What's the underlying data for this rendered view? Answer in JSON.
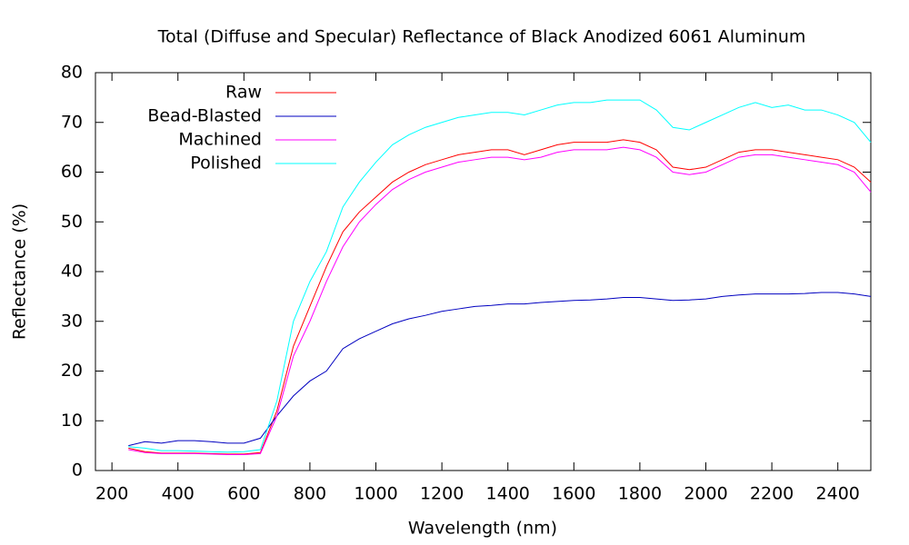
{
  "chart_data": {
    "type": "line",
    "title": "Total (Diffuse and Specular) Reflectance of Black Anodized 6061 Aluminum",
    "x_label": "Wavelength (nm)",
    "y_label": "Reflectance (%)",
    "x": [
      250,
      300,
      350,
      400,
      450,
      500,
      550,
      600,
      650,
      700,
      750,
      800,
      850,
      900,
      950,
      1000,
      1050,
      1100,
      1150,
      1200,
      1250,
      1300,
      1350,
      1400,
      1450,
      1500,
      1550,
      1600,
      1650,
      1700,
      1750,
      1800,
      1850,
      1900,
      1950,
      2000,
      2050,
      2100,
      2150,
      2200,
      2250,
      2300,
      2350,
      2400,
      2450,
      2500
    ],
    "series": [
      {
        "name": "Raw",
        "color": "#ff0000",
        "values": [
          4.5,
          3.8,
          3.5,
          3.5,
          3.5,
          3.4,
          3.3,
          3.3,
          3.6,
          12,
          25,
          33,
          41,
          48,
          52,
          55,
          58,
          60,
          61.5,
          62.5,
          63.5,
          64,
          64.5,
          64.5,
          63.5,
          64.5,
          65.5,
          66,
          66,
          66,
          66.5,
          66,
          64.5,
          61,
          60.5,
          61,
          62.5,
          64,
          64.5,
          64.5,
          64,
          63.5,
          63,
          62.5,
          61,
          58
        ]
      },
      {
        "name": "Bead-Blasted",
        "color": "#0000c0",
        "values": [
          5,
          5.8,
          5.5,
          6,
          6,
          5.8,
          5.5,
          5.5,
          6.5,
          11,
          15,
          18,
          20,
          24.5,
          26.5,
          28,
          29.5,
          30.5,
          31.2,
          32,
          32.5,
          33,
          33.2,
          33.5,
          33.5,
          33.8,
          34,
          34.2,
          34.3,
          34.5,
          34.8,
          34.8,
          34.5,
          34.2,
          34.3,
          34.5,
          35,
          35.3,
          35.5,
          35.5,
          35.5,
          35.6,
          35.8,
          35.8,
          35.5,
          35
        ]
      },
      {
        "name": "Machined",
        "color": "#ff00ff",
        "values": [
          4.2,
          3.6,
          3.4,
          3.4,
          3.4,
          3.3,
          3.2,
          3.2,
          3.4,
          11,
          23,
          30,
          38,
          45,
          50,
          53.5,
          56.5,
          58.5,
          60,
          61,
          62,
          62.5,
          63,
          63,
          62.5,
          63,
          64,
          64.5,
          64.5,
          64.5,
          65,
          64.5,
          63,
          60,
          59.5,
          60,
          61.5,
          63,
          63.5,
          63.5,
          63,
          62.5,
          62,
          61.5,
          60,
          56
        ]
      },
      {
        "name": "Polished",
        "color": "#00ffff",
        "values": [
          4.8,
          4.5,
          4,
          4,
          3.9,
          3.8,
          3.7,
          3.8,
          4.2,
          14,
          30,
          38,
          44,
          53,
          58,
          62,
          65.5,
          67.5,
          69,
          70,
          71,
          71.5,
          72,
          72,
          71.5,
          72.5,
          73.5,
          74,
          74,
          74.5,
          74.5,
          74.5,
          72.5,
          69,
          68.5,
          70,
          71.5,
          73,
          74,
          73,
          73.5,
          72.5,
          72.5,
          71.5,
          70,
          66
        ]
      }
    ],
    "xlim": [
      150,
      2500
    ],
    "xticks": [
      200,
      400,
      600,
      800,
      1000,
      1200,
      1400,
      1600,
      1800,
      2000,
      2200,
      2400
    ],
    "ylim": [
      0,
      80
    ],
    "yticks": [
      0,
      10,
      20,
      30,
      40,
      50,
      60,
      70,
      80
    ],
    "grid": false,
    "legend": "top-left"
  }
}
